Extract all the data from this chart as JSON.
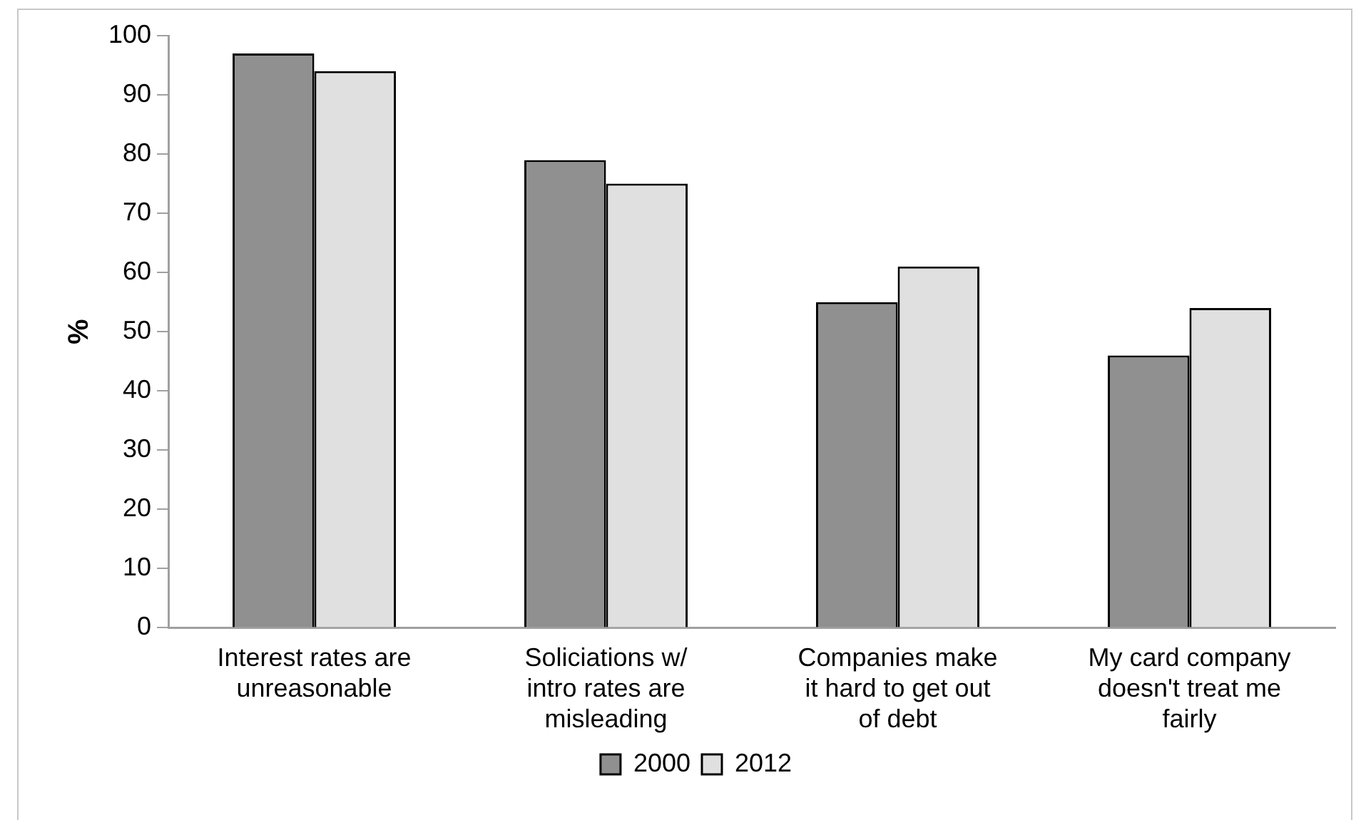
{
  "chart_data": {
    "type": "bar",
    "ylabel": "%",
    "categories": [
      "Interest rates are unreasonable",
      "Soliciations w/ intro rates are misleading",
      "Companies make it hard to get out of debt",
      "My card company doesn't treat me fairly"
    ],
    "series": [
      {
        "name": "2000",
        "color": "#909090",
        "values": [
          97,
          79,
          55,
          46
        ]
      },
      {
        "name": "2012",
        "color": "#e0e0e0",
        "values": [
          94,
          75,
          61,
          54
        ]
      }
    ],
    "ylim": [
      0,
      100
    ],
    "yticks": [
      0,
      10,
      20,
      30,
      40,
      50,
      60,
      70,
      80,
      90,
      100
    ],
    "grid": false,
    "legend": "bottom"
  }
}
